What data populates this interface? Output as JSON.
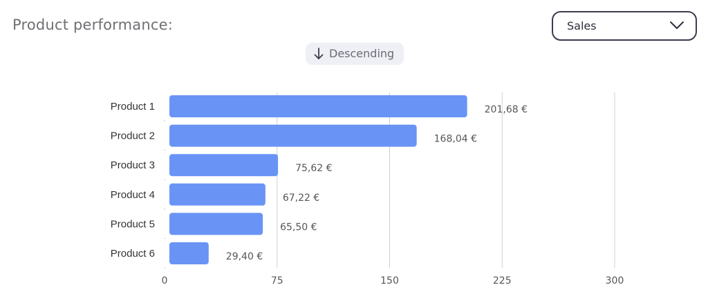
{
  "header": {
    "title": "Product performance:",
    "metric_dropdown": {
      "selected": "Sales",
      "icon": "chevron-down-icon"
    },
    "sort_button": {
      "label": "Descending",
      "icon": "arrow-down-icon"
    }
  },
  "chart_data": {
    "type": "bar",
    "orientation": "horizontal",
    "categories": [
      "Product 1",
      "Product 2",
      "Product 3",
      "Product 4",
      "Product 5",
      "Product 6"
    ],
    "values": [
      201.68,
      168.04,
      75.62,
      67.22,
      65.5,
      29.4
    ],
    "value_labels": [
      "201,68 €",
      "168,04 €",
      "75,62 €",
      "67,22 €",
      "65,50 €",
      "29,40 €"
    ],
    "x_ticks": [
      0,
      75,
      150,
      225,
      300
    ],
    "xlim": [
      0,
      300
    ],
    "grid": "vertical",
    "bar_color": "#6994f5",
    "gridline_color": "#d0d0d0"
  }
}
